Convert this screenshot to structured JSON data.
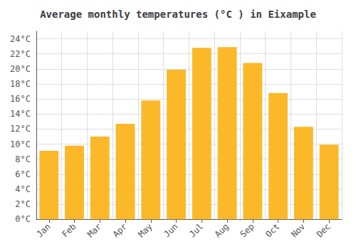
{
  "chart_data": {
    "type": "bar",
    "title": "Average monthly temperatures (°C ) in Eixample",
    "categories": [
      "Jan",
      "Feb",
      "Mar",
      "Apr",
      "May",
      "Jun",
      "Jul",
      "Aug",
      "Sep",
      "Oct",
      "Nov",
      "Dec"
    ],
    "values": [
      9.1,
      9.8,
      11.0,
      12.7,
      15.8,
      19.9,
      22.8,
      22.9,
      20.8,
      16.8,
      12.3,
      9.9
    ],
    "color": "#FBB829",
    "ylim": [
      0,
      25
    ],
    "yticks": [
      {
        "value": 0,
        "label": "0°C"
      },
      {
        "value": 2,
        "label": "2°C"
      },
      {
        "value": 4,
        "label": "4°C"
      },
      {
        "value": 6,
        "label": "6°C"
      },
      {
        "value": 8,
        "label": "8°C"
      },
      {
        "value": 10,
        "label": "10°C"
      },
      {
        "value": 12,
        "label": "12°C"
      },
      {
        "value": 14,
        "label": "14°C"
      },
      {
        "value": 16,
        "label": "16°C"
      },
      {
        "value": 18,
        "label": "18°C"
      },
      {
        "value": 20,
        "label": "20°C"
      },
      {
        "value": 22,
        "label": "22°C"
      },
      {
        "value": 24,
        "label": "24°C"
      }
    ],
    "grid": true
  }
}
